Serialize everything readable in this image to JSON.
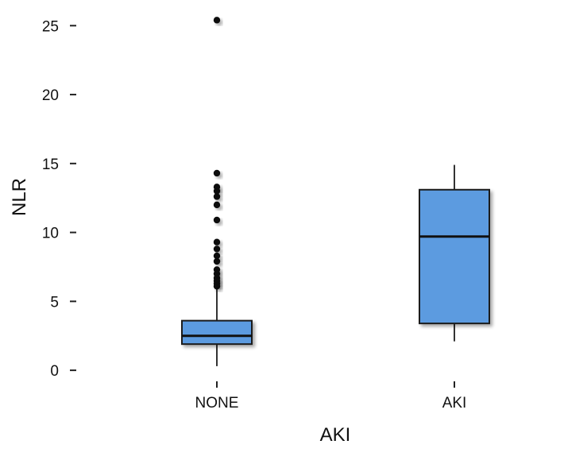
{
  "chart_data": {
    "type": "boxplot",
    "xlabel": "AKI",
    "ylabel": "NLR",
    "ylim": [
      -0.8,
      26.4
    ],
    "yticks": [
      0,
      5,
      10,
      15,
      20,
      25
    ],
    "categories": [
      "NONE",
      "AKI"
    ],
    "boxes": [
      {
        "category": "NONE",
        "whisker_low": 0.3,
        "q1": 1.9,
        "median": 2.5,
        "q3": 3.6,
        "whisker_high": 5.9,
        "outliers": [
          6.1,
          6.3,
          6.5,
          6.7,
          7.0,
          7.3,
          7.9,
          8.3,
          8.8,
          9.3,
          10.9,
          12.0,
          12.6,
          13.0,
          13.3,
          14.3,
          25.4
        ]
      },
      {
        "category": "AKI",
        "whisker_low": 2.1,
        "q1": 3.4,
        "median": 9.7,
        "q3": 13.1,
        "whisker_high": 14.9,
        "outliers": []
      }
    ],
    "box_color": "#5b9be0",
    "grid": false,
    "legend": "none"
  }
}
